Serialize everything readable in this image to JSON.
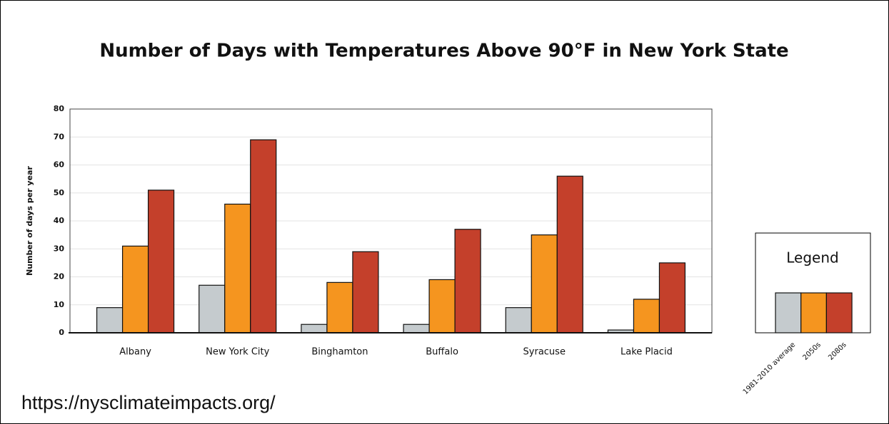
{
  "chart_data": {
    "type": "bar",
    "title": "Number of Days with Temperatures Above 90°F in New York State",
    "y_label": "Number of days per year",
    "legend_title": "Legend",
    "source": "https://nysclimateimpacts.org/",
    "categories": [
      "Albany",
      "New York City",
      "Binghamton",
      "Buffalo",
      "Syracuse",
      "Lake Placid"
    ],
    "series": [
      {
        "name": "1981-2010 average",
        "color": "#c5cbce",
        "values": [
          9,
          17,
          3,
          3,
          9,
          1
        ]
      },
      {
        "name": "2050s",
        "color": "#f5951f",
        "values": [
          31,
          46,
          18,
          19,
          35,
          12
        ]
      },
      {
        "name": "2080s",
        "color": "#c4402b",
        "values": [
          51,
          69,
          29,
          37,
          56,
          25
        ]
      }
    ],
    "ylim": [
      0,
      80
    ],
    "yticks": [
      0,
      10,
      20,
      30,
      40,
      50,
      60,
      70,
      80
    ],
    "grid": true,
    "legend": "right"
  }
}
